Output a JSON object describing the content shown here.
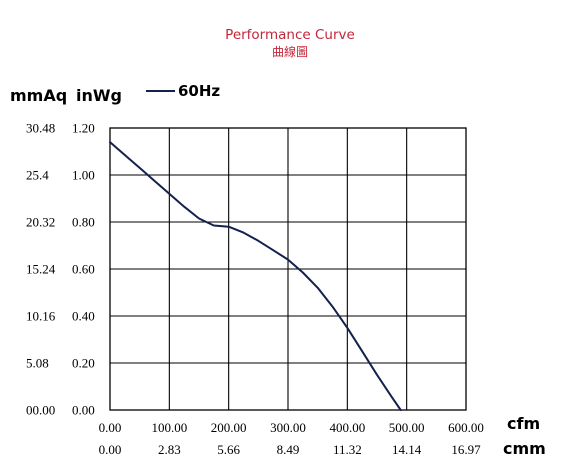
{
  "colors": {
    "title": "#c2273a",
    "series": "#14214d",
    "grid": "#000000"
  },
  "chart_data": {
    "type": "line",
    "title": "Performance Curve",
    "subtitle": "曲線圖",
    "y_unit_primary": "mmAq",
    "y_unit_secondary": "inWg",
    "x_unit_primary": "cfm",
    "x_unit_secondary": "cmm",
    "xlim": [
      0,
      600
    ],
    "ylim": [
      0,
      1.2
    ],
    "x_ticks": [
      "0.00",
      "100.00",
      "200.00",
      "300.00",
      "400.00",
      "500.00",
      "600.00"
    ],
    "x_ticks_secondary": [
      "0.00",
      "2.83",
      "5.66",
      "8.49",
      "11.32",
      "14.14",
      "16.97"
    ],
    "y_ticks": [
      "0.00",
      "0.20",
      "0.40",
      "0.60",
      "0.80",
      "1.00",
      "1.20"
    ],
    "y_ticks_secondary": [
      "00.00",
      "5.08",
      "10.16",
      "15.24",
      "20.32",
      "25.4",
      "30.48"
    ],
    "grid": true,
    "legend_position": "top-left",
    "series": [
      {
        "name": "60Hz",
        "x": [
          0,
          25,
          50,
          75,
          100,
          125,
          150,
          175,
          200,
          225,
          250,
          275,
          300,
          325,
          350,
          375,
          400,
          425,
          450,
          475,
          490
        ],
        "y": [
          1.14,
          1.085,
          1.03,
          0.975,
          0.92,
          0.865,
          0.815,
          0.785,
          0.78,
          0.755,
          0.72,
          0.68,
          0.64,
          0.585,
          0.52,
          0.44,
          0.35,
          0.25,
          0.15,
          0.055,
          0.0
        ]
      }
    ]
  }
}
